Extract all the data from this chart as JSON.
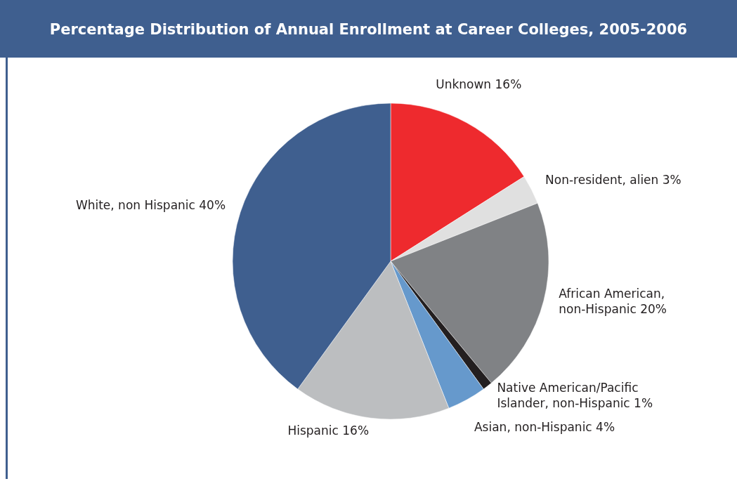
{
  "chart_data": {
    "type": "pie",
    "title": "Percentage Distribution of Annual Enrollment at Career Colleges, 2005-2006",
    "categories": [
      "Unknown",
      "Non-resident, alien",
      "African American, non-Hispanic",
      "Native American/Pacific Islander, non-Hispanic",
      "Asian, non-Hispanic",
      "Hispanic",
      "White, non Hispanic"
    ],
    "values": [
      16,
      3,
      20,
      1,
      4,
      16,
      40
    ],
    "value_labels": [
      "16%",
      "3%",
      "20%",
      "1%",
      "4%",
      "16%",
      "40%"
    ],
    "colors": [
      "#ee2a2e",
      "#e0e0e0",
      "#808285",
      "#231f20",
      "#6699cc",
      "#bcbec0",
      "#3f5f8f"
    ]
  }
}
